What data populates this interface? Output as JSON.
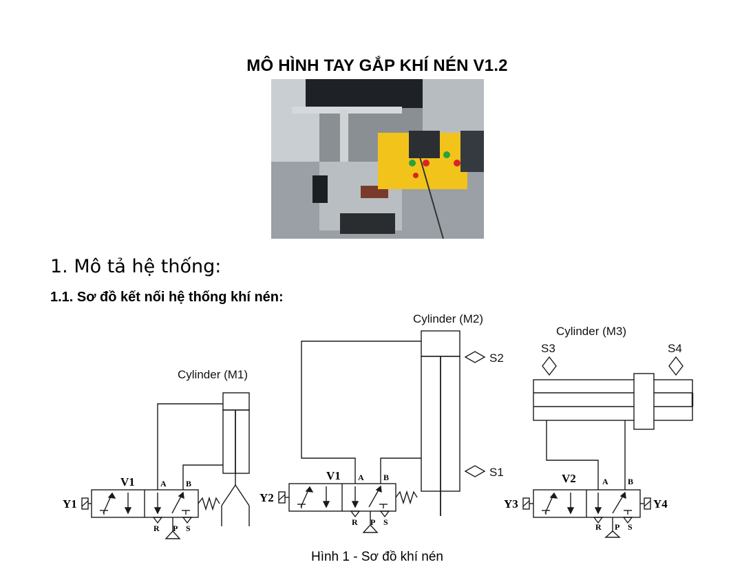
{
  "document": {
    "title": "MÔ HÌNH TAY GẮP KHÍ NÉN V1.2",
    "section_heading": "1. Mô tả hệ thống:",
    "subsection_heading": "1.1. Sơ đồ kết nối hệ thống khí nén:",
    "caption": "Hình 1 - Sơ đồ khí nén"
  },
  "diagram": {
    "cylinder_m1_label": "Cylinder (M1)",
    "cylinder_m2_label": "Cylinder (M2)",
    "cylinder_m3_label": "Cylinder (M3)",
    "sensors": {
      "s1": "S1",
      "s2": "S2",
      "s3": "S3",
      "s4": "S4"
    },
    "valves": {
      "v1_left": {
        "name": "V1",
        "solenoid": "Y1",
        "port_a": "A",
        "port_b": "B",
        "port_r": "R",
        "port_p": "P",
        "port_s": "S"
      },
      "v1_mid": {
        "name": "V1",
        "solenoid": "Y2",
        "port_a": "A",
        "port_b": "B",
        "port_r": "R",
        "port_p": "P",
        "port_s": "S"
      },
      "v2": {
        "name": "V2",
        "solenoid_left": "Y3",
        "solenoid_right": "Y4",
        "port_a": "A",
        "port_b": "B",
        "port_r": "R",
        "port_p": "P",
        "port_s": "S"
      }
    }
  },
  "colors": {
    "photo_yellow_box": "#f2c31a",
    "photo_bg": "#6f7478",
    "line": "#1a1a1a"
  }
}
